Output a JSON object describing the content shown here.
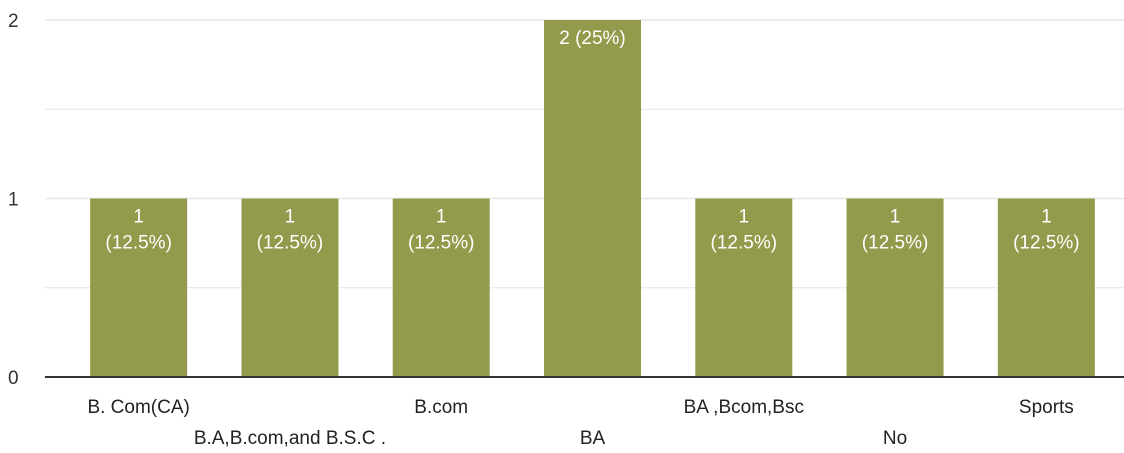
{
  "chart_data": {
    "type": "bar",
    "categories": [
      "B. Com(CA)",
      "B.A,B.com,and B.S.C .",
      "B.com",
      "BA",
      "BA ,Bcom,Bsc",
      "No",
      "Sports"
    ],
    "values": [
      1,
      1,
      1,
      2,
      1,
      1,
      1
    ],
    "data_labels": [
      [
        "1",
        "(12.5%)"
      ],
      [
        "1",
        "(12.5%)"
      ],
      [
        "1",
        "(12.5%)"
      ],
      [
        "2 (25%)"
      ],
      [
        "1",
        "(12.5%)"
      ],
      [
        "1",
        "(12.5%)"
      ],
      [
        "1",
        "(12.5%)"
      ]
    ],
    "y_ticks": [
      "0",
      "1",
      "2"
    ],
    "ylim": [
      0,
      2
    ],
    "grid": true,
    "bar_color": "#949a4c",
    "grid_color": "#e6e6e6",
    "axis_color": "#333333"
  }
}
